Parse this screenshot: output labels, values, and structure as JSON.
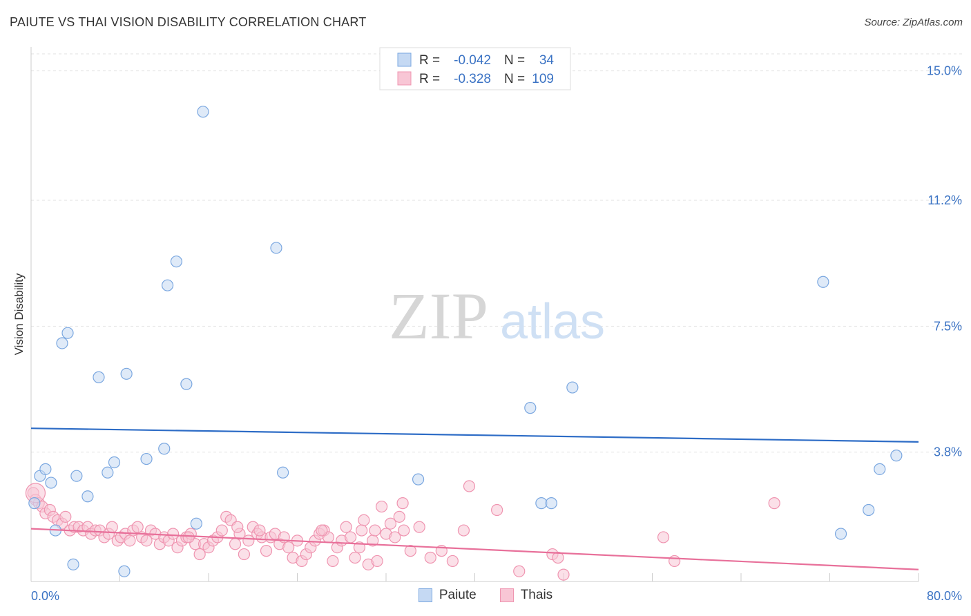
{
  "title": "PAIUTE VS THAI VISION DISABILITY CORRELATION CHART",
  "source": "Source: ZipAtlas.com",
  "watermark": {
    "zip": "ZIP",
    "atlas": "atlas"
  },
  "chart_data": {
    "type": "scatter",
    "ylabel": "Vision Disability",
    "xlim": [
      0,
      80
    ],
    "ylim": [
      0,
      15.5
    ],
    "x_tick_labels": [
      "0.0%",
      "80.0%"
    ],
    "y_ticks": [
      3.8,
      7.5,
      11.2,
      15.0
    ],
    "y_tick_labels": [
      "3.8%",
      "7.5%",
      "11.2%",
      "15.0%"
    ],
    "legend_stats": [
      {
        "r_label": "R =",
        "r": "-0.042",
        "n_label": "N =",
        "n": "34"
      },
      {
        "r_label": "R =",
        "r": "-0.328",
        "n_label": "N =",
        "n": "109"
      }
    ],
    "series": [
      {
        "name": "Paiute",
        "color": "#7aa7e0",
        "fill": "#c5d9f3",
        "line_color": "#2d6cc6",
        "trend": {
          "x": [
            0,
            80
          ],
          "y": [
            4.5,
            4.1
          ]
        },
        "points": [
          [
            0.3,
            2.3
          ],
          [
            0.8,
            3.1
          ],
          [
            1.3,
            3.3
          ],
          [
            1.8,
            2.9
          ],
          [
            2.2,
            1.5
          ],
          [
            2.8,
            7.0
          ],
          [
            3.3,
            7.3
          ],
          [
            4.1,
            3.1
          ],
          [
            5.1,
            2.5
          ],
          [
            6.1,
            6.0
          ],
          [
            6.9,
            3.2
          ],
          [
            7.5,
            3.5
          ],
          [
            8.6,
            6.1
          ],
          [
            10.4,
            3.6
          ],
          [
            12.0,
            3.9
          ],
          [
            12.3,
            8.7
          ],
          [
            13.1,
            9.4
          ],
          [
            14.0,
            5.8
          ],
          [
            14.9,
            1.7
          ],
          [
            15.5,
            13.8
          ],
          [
            22.1,
            9.8
          ],
          [
            22.7,
            3.2
          ],
          [
            34.9,
            3.0
          ],
          [
            45.0,
            5.1
          ],
          [
            46.0,
            2.3
          ],
          [
            46.9,
            2.3
          ],
          [
            48.8,
            5.7
          ],
          [
            71.4,
            8.8
          ],
          [
            73.0,
            1.4
          ],
          [
            75.5,
            2.1
          ],
          [
            76.5,
            3.3
          ],
          [
            78.0,
            3.7
          ],
          [
            3.8,
            0.5
          ],
          [
            8.4,
            0.3
          ]
        ]
      },
      {
        "name": "Thais",
        "color": "#ef94b0",
        "fill": "#f8c6d5",
        "line_color": "#e8709a",
        "trend": {
          "x": [
            0,
            80
          ],
          "y": [
            1.55,
            0.35
          ]
        },
        "points": [
          [
            0.2,
            2.6
          ],
          [
            0.4,
            2.4
          ],
          [
            0.7,
            2.3
          ],
          [
            1.0,
            2.2
          ],
          [
            1.3,
            2.0
          ],
          [
            1.7,
            2.1
          ],
          [
            2.0,
            1.9
          ],
          [
            2.4,
            1.8
          ],
          [
            2.8,
            1.7
          ],
          [
            3.1,
            1.9
          ],
          [
            3.5,
            1.5
          ],
          [
            3.9,
            1.6
          ],
          [
            4.3,
            1.6
          ],
          [
            4.7,
            1.5
          ],
          [
            5.1,
            1.6
          ],
          [
            5.4,
            1.4
          ],
          [
            5.8,
            1.5
          ],
          [
            6.2,
            1.5
          ],
          [
            6.6,
            1.3
          ],
          [
            7.0,
            1.4
          ],
          [
            7.3,
            1.6
          ],
          [
            7.8,
            1.2
          ],
          [
            8.1,
            1.3
          ],
          [
            8.5,
            1.4
          ],
          [
            8.9,
            1.2
          ],
          [
            9.2,
            1.5
          ],
          [
            9.6,
            1.6
          ],
          [
            10.0,
            1.3
          ],
          [
            10.4,
            1.2
          ],
          [
            10.8,
            1.5
          ],
          [
            11.2,
            1.4
          ],
          [
            11.6,
            1.1
          ],
          [
            12.0,
            1.3
          ],
          [
            12.4,
            1.2
          ],
          [
            12.8,
            1.4
          ],
          [
            13.2,
            1.0
          ],
          [
            13.6,
            1.2
          ],
          [
            14.0,
            1.3
          ],
          [
            14.4,
            1.4
          ],
          [
            14.8,
            1.1
          ],
          [
            15.2,
            0.8
          ],
          [
            15.6,
            1.1
          ],
          [
            16.0,
            1.0
          ],
          [
            16.4,
            1.2
          ],
          [
            16.8,
            1.3
          ],
          [
            17.2,
            1.5
          ],
          [
            17.6,
            1.9
          ],
          [
            18.0,
            1.8
          ],
          [
            18.4,
            1.1
          ],
          [
            18.8,
            1.4
          ],
          [
            19.2,
            0.8
          ],
          [
            19.6,
            1.2
          ],
          [
            20.0,
            1.6
          ],
          [
            20.4,
            1.4
          ],
          [
            20.8,
            1.3
          ],
          [
            21.2,
            0.9
          ],
          [
            21.6,
            1.3
          ],
          [
            22.0,
            1.4
          ],
          [
            22.4,
            1.1
          ],
          [
            22.8,
            1.3
          ],
          [
            23.2,
            1.0
          ],
          [
            23.6,
            0.7
          ],
          [
            24.0,
            1.2
          ],
          [
            24.4,
            0.6
          ],
          [
            24.8,
            0.8
          ],
          [
            25.2,
            1.0
          ],
          [
            25.6,
            1.2
          ],
          [
            26.0,
            1.4
          ],
          [
            26.4,
            1.5
          ],
          [
            26.8,
            1.3
          ],
          [
            27.2,
            0.6
          ],
          [
            27.6,
            1.0
          ],
          [
            28.0,
            1.2
          ],
          [
            28.4,
            1.6
          ],
          [
            28.8,
            1.3
          ],
          [
            29.2,
            0.7
          ],
          [
            29.6,
            1.0
          ],
          [
            30.0,
            1.8
          ],
          [
            30.4,
            0.5
          ],
          [
            30.8,
            1.2
          ],
          [
            31.2,
            0.6
          ],
          [
            31.6,
            2.2
          ],
          [
            32.0,
            1.4
          ],
          [
            32.4,
            1.7
          ],
          [
            32.8,
            1.3
          ],
          [
            33.2,
            1.9
          ],
          [
            33.6,
            1.5
          ],
          [
            34.2,
            0.9
          ],
          [
            35.0,
            1.6
          ],
          [
            36.0,
            0.7
          ],
          [
            37.0,
            0.9
          ],
          [
            38.0,
            0.6
          ],
          [
            39.0,
            1.5
          ],
          [
            42.0,
            2.1
          ],
          [
            44.0,
            0.3
          ],
          [
            47.0,
            0.8
          ],
          [
            47.5,
            0.7
          ],
          [
            48.0,
            0.2
          ],
          [
            57.0,
            1.3
          ],
          [
            58.0,
            0.6
          ],
          [
            67.0,
            2.3
          ],
          [
            39.5,
            2.8
          ],
          [
            33.5,
            2.3
          ],
          [
            31.0,
            1.5
          ],
          [
            29.8,
            1.5
          ],
          [
            26.2,
            1.5
          ],
          [
            20.6,
            1.5
          ],
          [
            18.6,
            1.6
          ],
          [
            14.2,
            1.3
          ]
        ]
      }
    ]
  }
}
